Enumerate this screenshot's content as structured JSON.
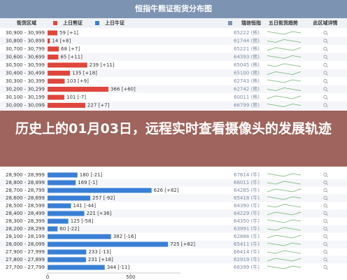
{
  "title": "恒指牛熊证街货分布图",
  "columns": [
    "街货区域",
    "上日熊证",
    "上日牛证",
    "瑞信恒指",
    "五日街货趋势",
    "此区域详情"
  ],
  "banner": "历史上的01月03日，远程实时查看摄像头的发展轨迹",
  "bear_rows": [
    {
      "range": "30,900 - 30,999",
      "bar": 59,
      "label": "59 [+1]",
      "code": "65222 (熊)"
    },
    {
      "range": "30,800 - 30,899",
      "bar": 14,
      "label": "14 [+8]",
      "code": "61744 (熊)"
    },
    {
      "range": "30,700 - 30,799",
      "bar": 68,
      "label": "68 [+7]",
      "code": "65221 (熊)"
    },
    {
      "range": "30,600 - 30,699",
      "bar": 65,
      "label": "65 [+11]",
      "code": "64393 (熊)"
    },
    {
      "range": "30,500 - 30,599",
      "bar": 239,
      "label": "239 [+11]",
      "code": "65045 (熊)"
    },
    {
      "range": "30,400 - 30,499",
      "bar": 135,
      "label": "135 [+18]",
      "code": "65100 (熊)"
    },
    {
      "range": "30,300 - 30,399",
      "bar": 103,
      "label": "103 [+9]",
      "code": "62743 (熊)"
    },
    {
      "range": "30,200 - 30,299",
      "bar": 366,
      "label": "366 [+60]",
      "code": "62742 (熊)"
    },
    {
      "range": "30,100 - 30,199",
      "bar": 101,
      "label": "101 [-7]",
      "code": "60011 (熊)"
    },
    {
      "range": "30,000 - 30,099",
      "bar": 227,
      "label": "227 [+7]",
      "code": "66799 (熊)"
    }
  ],
  "bull_rows": [
    {
      "range": "28,900 - 28,999",
      "bar": 180,
      "label": "180 [-21]",
      "code": "67614 (牛)"
    },
    {
      "range": "28,800 - 28,899",
      "bar": 169,
      "label": "169 [-1]",
      "code": "66011 (牛)"
    },
    {
      "range": "28,700 - 28,799",
      "bar": 626,
      "label": "626 [+82]",
      "code": "64285 (牛)"
    },
    {
      "range": "28,600 - 28,699",
      "bar": 257,
      "label": "257 [-92]",
      "code": "65418 (牛)"
    },
    {
      "range": "28,500 - 28,599",
      "bar": 141,
      "label": "141 [-44]",
      "code": "64390 (牛)"
    },
    {
      "range": "28,400 - 28,499",
      "bar": 221,
      "label": "221 [+36]",
      "code": "64229 (牛)"
    },
    {
      "range": "28,300 - 28,399",
      "bar": 125,
      "label": "125 [-58]",
      "code": "64350 (牛)"
    },
    {
      "range": "28,200 - 28,299",
      "bar": 60,
      "label": "60 [-22]",
      "code": "63991 (牛)"
    },
    {
      "range": "28,100 - 28,199",
      "bar": 382,
      "label": "382 [-16]",
      "code": "62886 (牛)"
    },
    {
      "range": "28,000 - 28,099",
      "bar": 725,
      "label": "725 [+82]",
      "code": "65411 (牛)"
    },
    {
      "range": "27,900 - 27,999",
      "bar": 233,
      "label": "233 [-13]",
      "code": "66414 (牛)"
    },
    {
      "range": "27,800 - 27,899",
      "bar": 231,
      "label": "231 [+18]",
      "code": "62919 (牛)"
    },
    {
      "range": "27,700 - 27,799",
      "bar": 344,
      "label": "344 [-11]",
      "code": "68399 (牛)"
    }
  ],
  "xlim": [
    0,
    800
  ],
  "xticks": [
    0,
    500
  ],
  "bear_color": "#e0463c",
  "bull_color": "#3a7fd5"
}
